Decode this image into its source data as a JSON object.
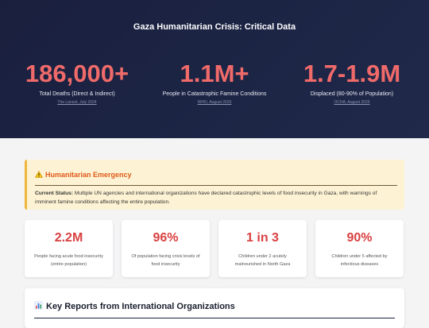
{
  "hero": {
    "title": "Gaza Humanitarian Crisis: Critical Data",
    "stats": [
      {
        "value": "186,000+",
        "label": "Total Deaths (Direct & Indirect)",
        "source": "The Lancet, July 2024"
      },
      {
        "value": "1.1M+",
        "label": "People in Catastrophic Famine Conditions",
        "source": "WHO, August 2025"
      },
      {
        "value": "1.7-1.9M",
        "label": "Displaced (80-90% of Population)",
        "source": "OCHA, August 2025"
      }
    ]
  },
  "alert": {
    "icon": "warning-icon",
    "title": "Humanitarian Emergency",
    "status_label": "Current Status:",
    "status_text": " Multiple UN agencies and international organizations have declared catastrophic levels of food insecurity in Gaza, with warnings of imminent famine conditions affecting the entire population."
  },
  "cards": [
    {
      "value": "2.2M",
      "label": "People facing acute food insecurity (entire population)"
    },
    {
      "value": "96%",
      "label": "Of population facing crisis levels of food insecurity"
    },
    {
      "value": "1 in 3",
      "label": "Children under 2 acutely malnourished in North Gaza"
    },
    {
      "value": "90%",
      "label": "Children under 5 affected by infectious diseases"
    }
  ],
  "reports": {
    "icon": "bar-chart-icon",
    "title": "Key Reports from International Organizations"
  },
  "colors": {
    "accent_red": "#f06a6a",
    "card_red": "#d94040",
    "alert_orange": "#e05a1a",
    "alert_border": "#f0b53a",
    "hero_bg": "#1c2444"
  }
}
